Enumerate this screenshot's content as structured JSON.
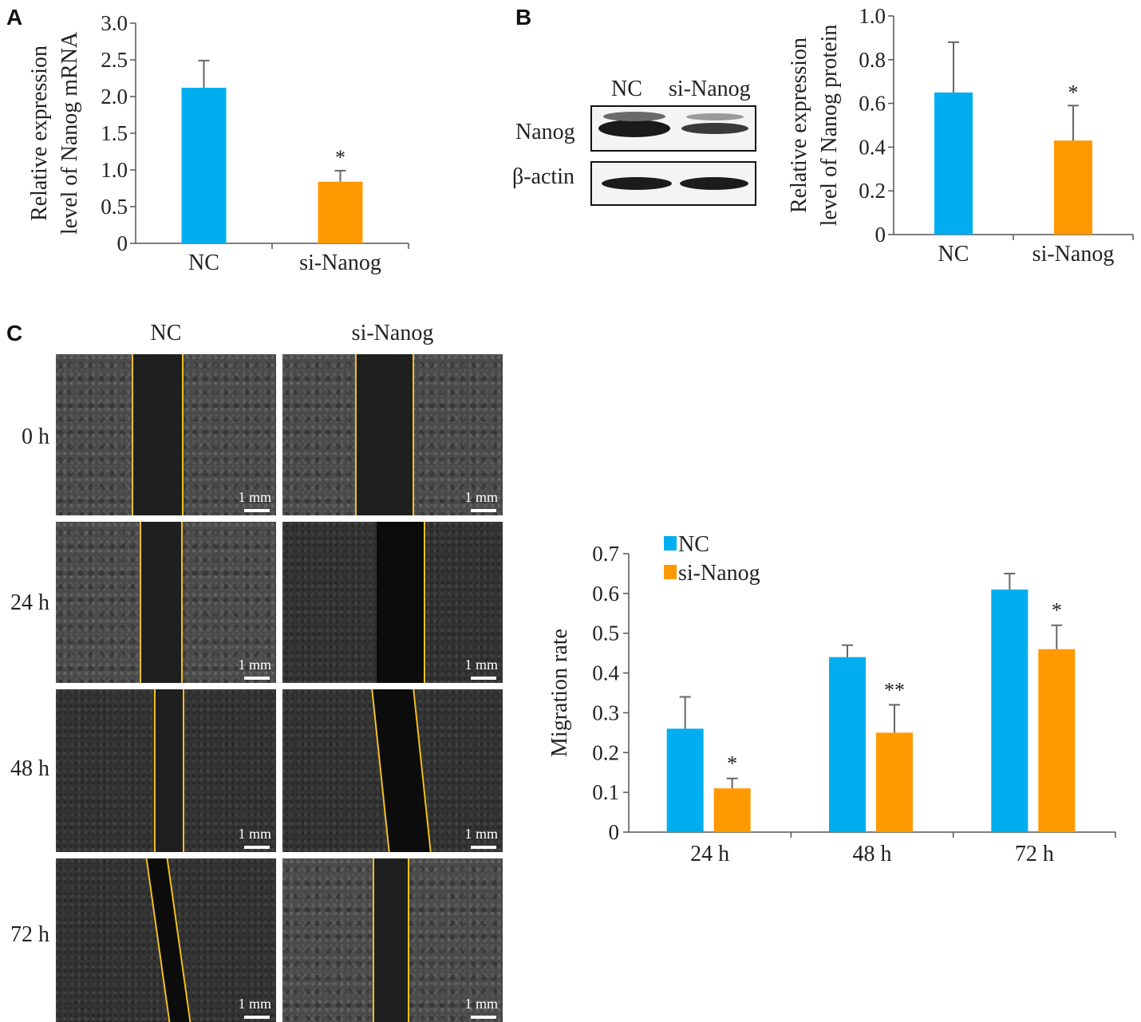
{
  "panels": {
    "a_letter": "A",
    "b_letter": "B",
    "c_letter": "C"
  },
  "blot": {
    "lanes": [
      "NC",
      "si-Nanog"
    ],
    "rows": [
      "Nanog",
      "β-actin"
    ]
  },
  "scratch": {
    "columns": [
      "NC",
      "si-Nanog"
    ],
    "rows": [
      "0 h",
      "24 h",
      "48 h",
      "72 h"
    ],
    "scale_label": "1 mm"
  },
  "colors": {
    "nc": "#00AEEF",
    "si": "#FF9900",
    "error": "#666666"
  },
  "chart_data": [
    {
      "type": "bar",
      "id": "A",
      "categories": [
        "NC",
        "si-Nanog"
      ],
      "values": [
        2.12,
        0.84
      ],
      "errors": [
        0.37,
        0.15
      ],
      "significance": [
        "",
        "*"
      ],
      "ylabel": [
        "Relative expression",
        "level of Nanog mRNA"
      ],
      "yticks": [
        "0",
        "0.5",
        "1.0",
        "1.5",
        "2.0",
        "2.5",
        "3.0"
      ],
      "ylim": [
        0,
        3.0
      ]
    },
    {
      "type": "bar",
      "id": "B",
      "categories": [
        "NC",
        "si-Nanog"
      ],
      "values": [
        0.65,
        0.43
      ],
      "errors": [
        0.23,
        0.16
      ],
      "significance": [
        "",
        "*"
      ],
      "ylabel": [
        "Relative expression",
        "level of Nanog protein"
      ],
      "yticks": [
        "0",
        "0.2",
        "0.4",
        "0.6",
        "0.8",
        "1.0"
      ],
      "ylim": [
        0,
        1.0
      ]
    },
    {
      "type": "bar",
      "id": "C",
      "categories": [
        "24 h",
        "48 h",
        "72 h"
      ],
      "series": [
        {
          "name": "NC",
          "values": [
            0.26,
            0.44,
            0.61
          ],
          "errors": [
            0.08,
            0.03,
            0.04
          ],
          "significance": [
            "",
            "",
            ""
          ]
        },
        {
          "name": "si-Nanog",
          "values": [
            0.11,
            0.25,
            0.46
          ],
          "errors": [
            0.025,
            0.07,
            0.06
          ],
          "significance": [
            "*",
            "**",
            "*"
          ]
        }
      ],
      "ylabel": "Migration rate",
      "yticks": [
        "0",
        "0.1",
        "0.2",
        "0.3",
        "0.4",
        "0.5",
        "0.6",
        "0.7"
      ],
      "ylim": [
        0,
        0.7
      ],
      "legend": "top-left"
    }
  ]
}
